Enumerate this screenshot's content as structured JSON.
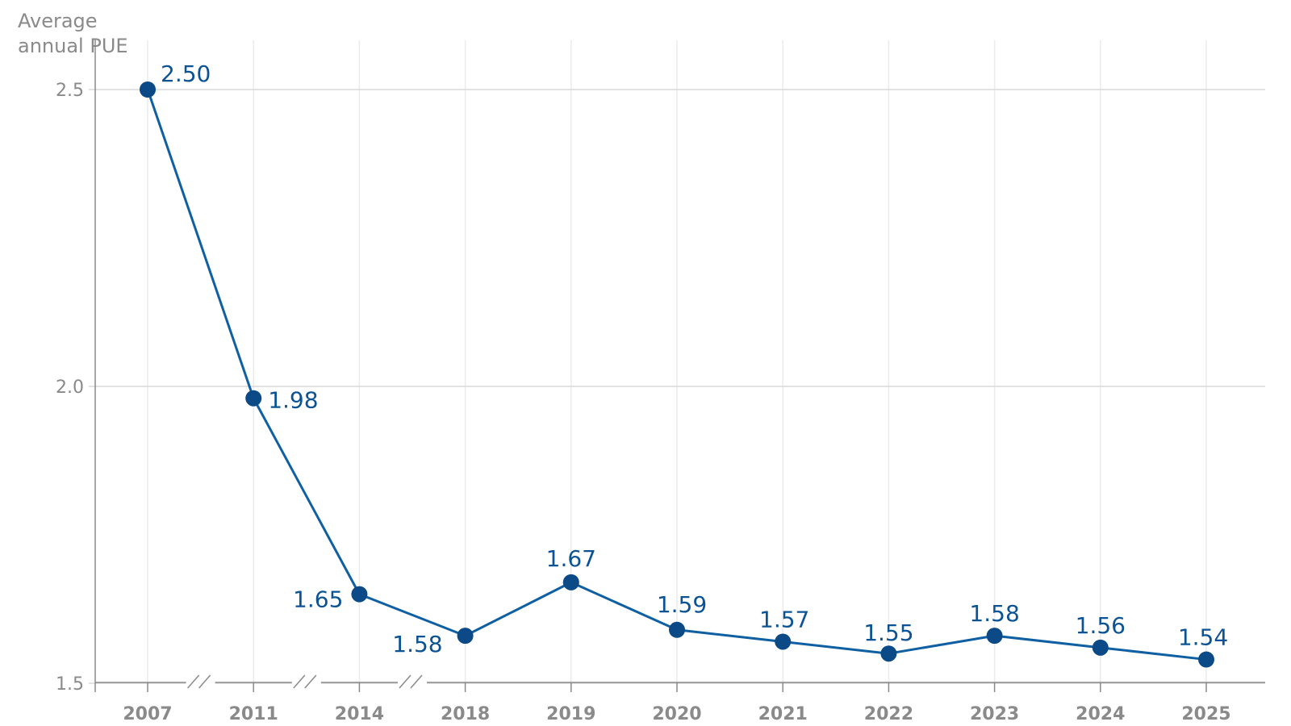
{
  "chart_data": {
    "type": "line",
    "ylabel_lines": [
      "Average",
      "annual PUE"
    ],
    "categories": [
      "2007",
      "2011",
      "2014",
      "2018",
      "2019",
      "2020",
      "2021",
      "2022",
      "2023",
      "2024",
      "2025"
    ],
    "values": [
      2.5,
      1.98,
      1.65,
      1.58,
      1.67,
      1.59,
      1.57,
      1.55,
      1.58,
      1.56,
      1.54
    ],
    "data_labels": [
      "2.50",
      "1.98",
      "1.65",
      "1.58",
      "1.67",
      "1.59",
      "1.57",
      "1.55",
      "1.58",
      "1.56",
      "1.54"
    ],
    "yticks": [
      {
        "value": 2.5,
        "label": "2.5"
      },
      {
        "value": 2.0,
        "label": "2.0"
      },
      {
        "value": 1.5,
        "label": "1.5"
      }
    ],
    "ylim": [
      1.465,
      2.616
    ],
    "grid": true,
    "axis_breaks_after": [
      "2007",
      "2011",
      "2014"
    ],
    "colors": {
      "line": "#0f5fa3",
      "marker": "#0b4a86",
      "label": "#0b5394",
      "grid": "#d9d9d9",
      "axis": "#8a8a8a"
    }
  }
}
